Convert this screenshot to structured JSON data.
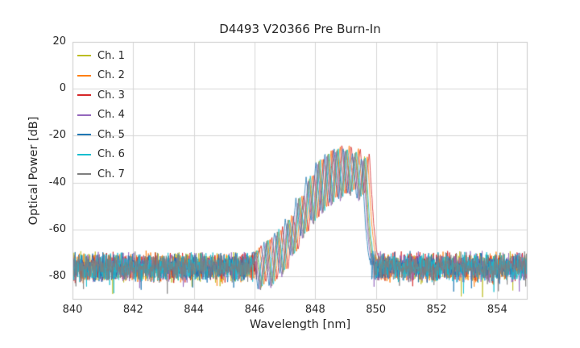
{
  "chart_data": {
    "type": "line",
    "title": "D4493 V20366 Pre Burn-In",
    "xlabel": "Wavelength [nm]",
    "ylabel": "Optical Power [dB]",
    "xlim": [
      840,
      855
    ],
    "ylim": [
      -90,
      20
    ],
    "xticks": [
      840,
      842,
      844,
      846,
      848,
      850,
      852,
      854
    ],
    "yticks": [
      20,
      0,
      -20,
      -40,
      -60,
      -80
    ],
    "grid": true,
    "legend_position": "upper left",
    "noise_floor_db": -76,
    "noise_band_db": [
      -84,
      -69
    ],
    "signal_band_nm": [
      845.95,
      849.98
    ],
    "peak_power_db": -24.5,
    "peak_wavelength_nm": 848.9,
    "envelope_points": [
      [
        845.95,
        -74
      ],
      [
        846.1,
        -68
      ],
      [
        846.25,
        -84
      ],
      [
        846.45,
        -64
      ],
      [
        846.62,
        -83
      ],
      [
        846.8,
        -60
      ],
      [
        846.98,
        -78
      ],
      [
        847.15,
        -55
      ],
      [
        847.32,
        -70
      ],
      [
        847.5,
        -46
      ],
      [
        847.66,
        -62
      ],
      [
        847.84,
        -37
      ],
      [
        848.0,
        -56
      ],
      [
        848.16,
        -30
      ],
      [
        848.31,
        -52
      ],
      [
        848.46,
        -26.5
      ],
      [
        848.61,
        -48
      ],
      [
        848.76,
        -24.5
      ],
      [
        848.91,
        -46
      ],
      [
        849.06,
        -24.5
      ],
      [
        849.21,
        -44
      ],
      [
        849.36,
        -26
      ],
      [
        849.51,
        -46
      ],
      [
        849.66,
        -28.5
      ],
      [
        849.8,
        -58
      ],
      [
        849.9,
        -70
      ],
      [
        849.98,
        -74
      ]
    ],
    "series": [
      {
        "name": "Ch. 1",
        "color": "#bcbd22",
        "shift_nm": -0.03,
        "offset_db": -0.5
      },
      {
        "name": "Ch. 2",
        "color": "#ff7f0e",
        "shift_nm": 0.06,
        "offset_db": 0.5
      },
      {
        "name": "Ch. 3",
        "color": "#d62728",
        "shift_nm": 0.12,
        "offset_db": 1.0
      },
      {
        "name": "Ch. 4",
        "color": "#9467bd",
        "shift_nm": -0.08,
        "offset_db": -2.0
      },
      {
        "name": "Ch. 5",
        "color": "#1f77b4",
        "shift_nm": -0.14,
        "offset_db": -1.0
      },
      {
        "name": "Ch. 6",
        "color": "#17becf",
        "shift_nm": 0.0,
        "offset_db": -0.5
      },
      {
        "name": "Ch. 7",
        "color": "#7f7f7f",
        "shift_nm": -0.05,
        "offset_db": -1.5
      }
    ],
    "grid_color": "#d6d6d6",
    "spine_color": "#cccccc",
    "background_color": "#ffffff"
  }
}
